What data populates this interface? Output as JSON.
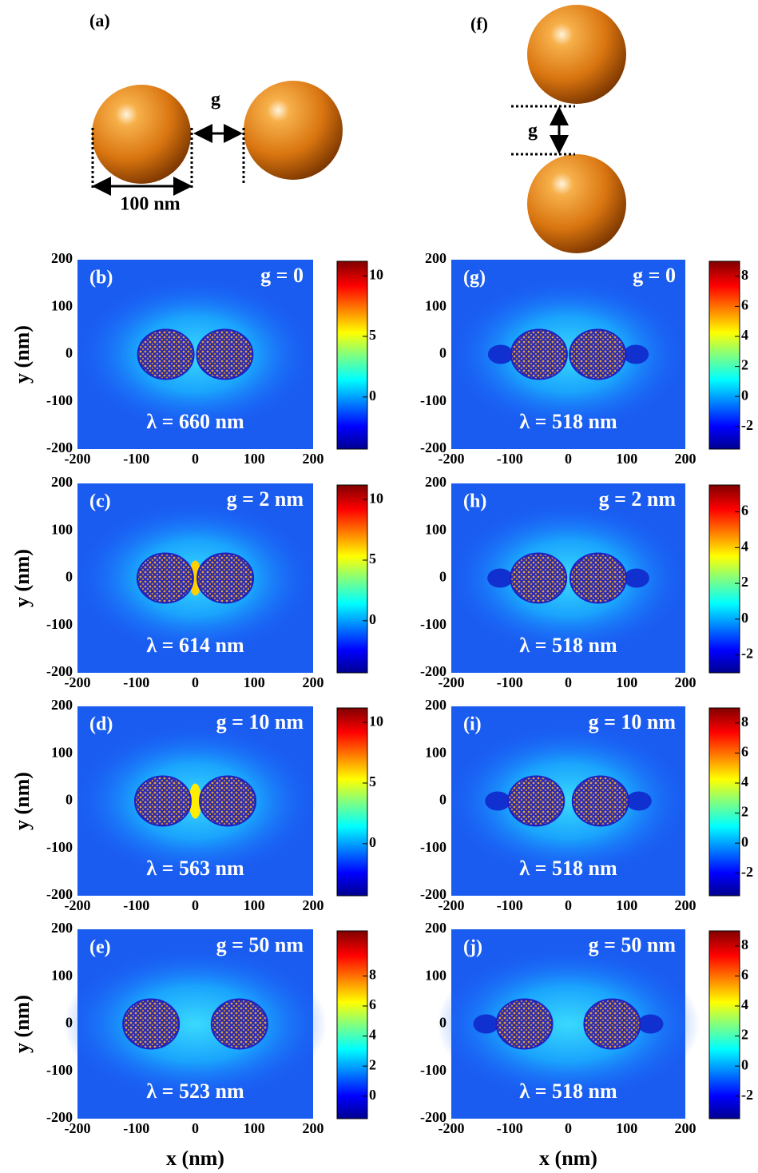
{
  "schematics": {
    "a": {
      "label": "(a)",
      "gap": "g",
      "diameter": "100 nm"
    },
    "f": {
      "label": "(f)",
      "gap": "g"
    }
  },
  "axes": {
    "y_label": "y (nm)",
    "x_label": "x (nm)",
    "xlim": [
      -200,
      200
    ],
    "ylim": [
      -200,
      200
    ],
    "ticks": [
      -200,
      -100,
      0,
      100,
      200
    ]
  },
  "panels": [
    {
      "label": "(b)",
      "gap": "g = 0",
      "wavelength": "λ = 660 nm",
      "clim": [
        -4.3,
        11.2
      ],
      "colorbar_ticks": [
        10,
        5,
        0
      ]
    },
    {
      "label": "(c)",
      "gap": "g = 2 nm",
      "wavelength": "λ = 614 nm",
      "clim": [
        -4.3,
        11.2
      ],
      "colorbar_ticks": [
        10,
        5,
        0
      ]
    },
    {
      "label": "(d)",
      "gap": "g = 10 nm",
      "wavelength": "λ = 563 nm",
      "clim": [
        -4.3,
        11.2
      ],
      "colorbar_ticks": [
        10,
        5,
        0
      ]
    },
    {
      "label": "(e)",
      "gap": "g = 50 nm",
      "wavelength": "λ = 523 nm",
      "clim": [
        -1.5,
        11
      ],
      "colorbar_ticks": [
        8,
        6,
        4,
        2,
        0
      ]
    },
    {
      "label": "(g)",
      "gap": "g = 0",
      "wavelength": "λ = 518 nm",
      "clim": [
        -3.5,
        9
      ],
      "colorbar_ticks": [
        8,
        6,
        4,
        2,
        0,
        -2
      ]
    },
    {
      "label": "(h)",
      "gap": "g = 2 nm",
      "wavelength": "λ = 518 nm",
      "clim": [
        -3,
        7.5
      ],
      "colorbar_ticks": [
        6,
        4,
        2,
        0,
        -2
      ]
    },
    {
      "label": "(i)",
      "gap": "g = 10 nm",
      "wavelength": "λ = 518 nm",
      "clim": [
        -3.5,
        9
      ],
      "colorbar_ticks": [
        8,
        6,
        4,
        2,
        0,
        -2
      ]
    },
    {
      "label": "(j)",
      "gap": "g = 50 nm",
      "wavelength": "λ = 518 nm",
      "clim": [
        -3.5,
        9
      ],
      "colorbar_ticks": [
        8,
        6,
        4,
        2,
        0,
        -2
      ]
    }
  ]
}
